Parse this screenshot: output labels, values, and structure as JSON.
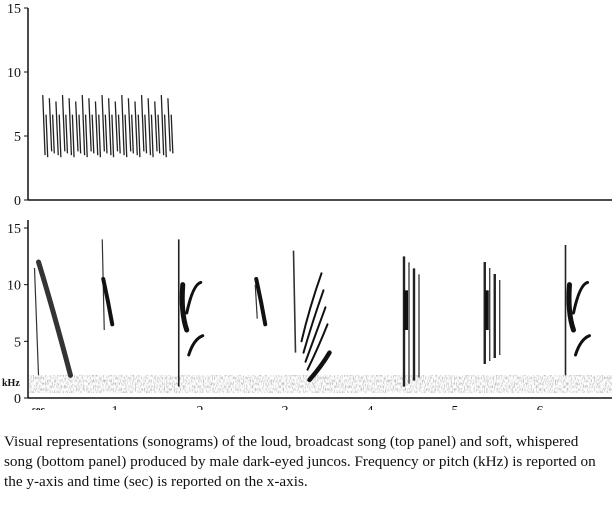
{
  "chart_data": [
    {
      "type": "heatmap",
      "panel": "top",
      "description_role": "sonogram",
      "title": "",
      "xlabel": "",
      "ylabel": "",
      "ylim": [
        0,
        15
      ],
      "yticks": [
        0,
        5,
        10,
        15
      ],
      "xlim": [
        0,
        6.8
      ],
      "xticks": [],
      "grid": false,
      "trill": {
        "start_sec": 0.15,
        "end_sec": 1.7,
        "notes": 20,
        "low_khz": 3.5,
        "high_khz": 8.2
      }
    },
    {
      "type": "heatmap",
      "panel": "bottom",
      "title": "",
      "xlabel": "sec",
      "ylabel": "kHz",
      "ylim": [
        0,
        15
      ],
      "yticks": [
        0,
        5,
        10,
        15
      ],
      "xlim": [
        0,
        6.8
      ],
      "xticks": [
        1,
        2,
        3,
        4,
        5,
        6
      ],
      "grid": false,
      "syllables": [
        {
          "t_sec": 0.1,
          "low_khz": 2.0,
          "high_khz": 12.0,
          "kind": "long-downsweep"
        },
        {
          "t_sec": 0.85,
          "low_khz": 6.0,
          "high_khz": 14.0,
          "kind": "vertical"
        },
        {
          "t_sec": 1.75,
          "low_khz": 1.0,
          "high_khz": 14.0,
          "kind": "vertical-with-arcs"
        },
        {
          "t_sec": 2.65,
          "low_khz": 7.0,
          "high_khz": 10.0,
          "kind": "short"
        },
        {
          "t_sec": 3.1,
          "low_khz": 2.0,
          "high_khz": 13.0,
          "kind": "fan-arcs"
        },
        {
          "t_sec": 4.4,
          "low_khz": 1.0,
          "high_khz": 12.5,
          "kind": "vertical-cluster"
        },
        {
          "t_sec": 5.35,
          "low_khz": 3.0,
          "high_khz": 12.0,
          "kind": "vertical-cluster"
        },
        {
          "t_sec": 6.3,
          "low_khz": 2.0,
          "high_khz": 13.5,
          "kind": "vertical-with-arcs"
        }
      ]
    }
  ],
  "caption": {
    "text": "Visual representations (sonograms) of the loud, broadcast song (top panel) and soft, whispered song (bottom panel) produced by male dark-eyed juncos. Frequency or pitch (kHz) is reported on the y-axis and time (sec) is reported on the x-axis."
  }
}
